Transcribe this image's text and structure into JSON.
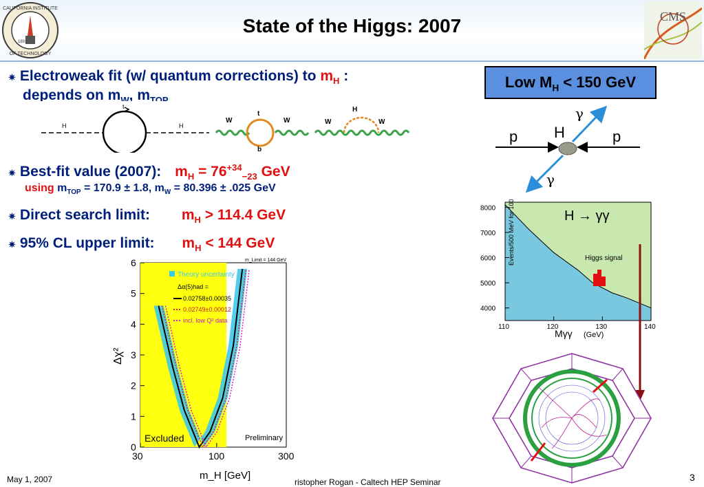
{
  "slide": {
    "title": "State of the Higgs: 2007",
    "bullet1_line1": "Electroweak fit (w/ quantum corrections) to",
    "bullet1_mh": "m",
    "bullet1_mh_sub": "H",
    "bullet1_colon": ":",
    "bullet1_line2": "depends on m",
    "bullet1_line2_sub1": "W",
    "bullet1_line2_mid": ", m",
    "bullet1_line2_sub2": "TOP",
    "bullet2_label": "Best-fit value (2007):",
    "bullet2_value_m": "m",
    "bullet2_value_sub": "H",
    "bullet2_value_eq": " = 76",
    "bullet2_value_sup": "+34",
    "bullet2_value_sub2": "−23",
    "bullet2_value_unit": " GeV",
    "bullet2_using": "using",
    "bullet2_using_text1": "m",
    "bullet2_using_sub1": "TOP",
    "bullet2_using_text2": " = 170.9 ± 1.8, m",
    "bullet2_using_sub2": "W",
    "bullet2_using_text3": " = 80.396 ± .025 GeV",
    "bullet3_label": "Direct search limit:",
    "bullet3_m": "m",
    "bullet3_sub": "H",
    "bullet3_value": " > 114.4 GeV",
    "bullet4_label": "95% CL upper limit:",
    "bullet4_m": "m",
    "bullet4_sub": "H",
    "bullet4_value": " < 144 GeV",
    "low_mh_label": "Low M",
    "low_mh_sub": "H",
    "low_mh_value": " < 150 GeV"
  },
  "feynman": {
    "loop1_left_label": "H",
    "loop1_right_label": "H",
    "loop1_top_label": "t",
    "loop1_bottom_label": "t",
    "loop2_left": "W",
    "loop2_right": "W",
    "loop2_top": "t",
    "loop2_bottom": "b",
    "loop3_left": "W",
    "loop3_right": "W",
    "loop3_top": "H"
  },
  "production": {
    "p_left": "p",
    "p_right": "p",
    "h_label": "H",
    "gamma_top": "γ",
    "gamma_bottom": "γ"
  },
  "chi2_plot": {
    "ylabel": "Δχ²",
    "xlabel": "m_H [GeV]",
    "x_ticks": [
      "30",
      "100",
      "300"
    ],
    "y_ticks": [
      "0",
      "1",
      "2",
      "3",
      "4",
      "5",
      "6"
    ],
    "excluded_label": "Excluded",
    "preliminary_label": "Preliminary",
    "limit_label": "m_Limit = 144 GeV",
    "legend_theory": "Theory uncertainty",
    "legend_alpha": "Δα(5)had =",
    "legend_line1": "0.02758±0.00035",
    "legend_line2": "0.02749±0.00012",
    "legend_line3": "incl. low Q² data"
  },
  "hgg_plot": {
    "title": "H → γγ",
    "signal_label": "Higgs signal",
    "ylabel": "Events/500 MeV for 100 fb⁻¹",
    "xlabel": "Mγγ",
    "xunit": "(GeV)",
    "x_ticks": [
      "110",
      "120",
      "130",
      "140"
    ],
    "y_ticks": [
      "4000",
      "5000",
      "6000",
      "7000",
      "8000"
    ]
  },
  "chart_data": [
    {
      "type": "line",
      "title": "",
      "xlabel": "m_H [GeV]",
      "ylabel": "Δχ²",
      "xscale": "log",
      "xlim": [
        30,
        300
      ],
      "ylim": [
        0,
        6
      ],
      "series": [
        {
          "name": "0.02758±0.00035",
          "x": [
            40,
            50,
            60,
            76,
            90,
            110,
            130,
            150
          ],
          "values": [
            4.6,
            2.6,
            1.2,
            0.0,
            0.5,
            1.6,
            3.3,
            5.8
          ]
        }
      ]
    },
    {
      "type": "area",
      "title": "H → γγ",
      "xlabel": "Mγγ (GeV)",
      "ylabel": "Events/500 MeV for 100 fb⁻¹",
      "xlim": [
        110,
        140
      ],
      "ylim": [
        3500,
        8200
      ],
      "x": [
        110,
        115,
        120,
        125,
        128,
        130,
        132,
        135,
        140
      ],
      "values": [
        8100,
        7100,
        6200,
        5500,
        5000,
        4800,
        4600,
        4400,
        4000
      ]
    }
  ],
  "footer": {
    "date": "May 1, 2007",
    "author": "ristopher Rogan - Caltech HEP Seminar",
    "page": "3"
  }
}
